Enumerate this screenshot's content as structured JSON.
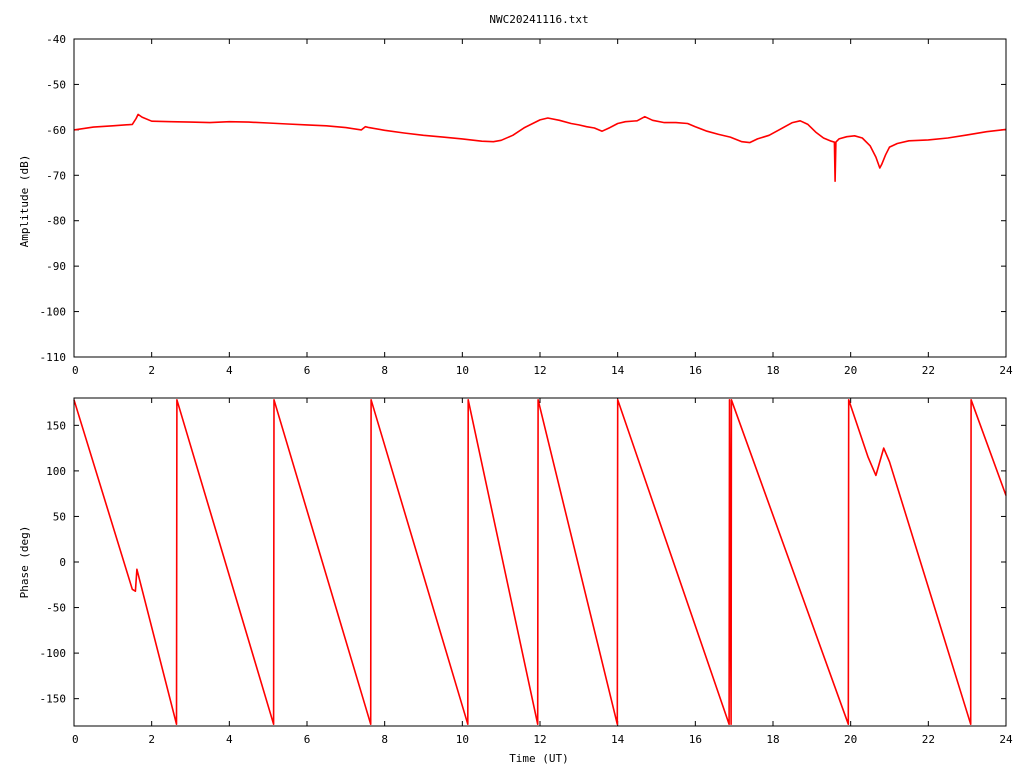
{
  "chart_data": [
    {
      "type": "line",
      "title": "NWC20241116.txt",
      "xlabel": "",
      "ylabel": "Amplitude (dB)",
      "xlim": [
        0,
        24
      ],
      "ylim": [
        -110,
        -40
      ],
      "x_ticks": [
        "0",
        "2",
        "4",
        "6",
        "8",
        "10",
        "12",
        "14",
        "16",
        "18",
        "20",
        "22",
        "24"
      ],
      "y_ticks": [
        "-40",
        "-50",
        "-60",
        "-70",
        "-80",
        "-90",
        "-100",
        "-110"
      ],
      "grid": false,
      "color": "#ff0000",
      "series": [
        {
          "x": [
            0,
            0.5,
            1.0,
            1.5,
            1.6,
            1.65,
            1.75,
            2.0,
            2.5,
            3.0,
            3.5,
            4.0,
            4.5,
            5.0,
            5.5,
            6.0,
            6.5,
            7.0,
            7.4,
            7.5,
            7.6,
            8.0,
            8.5,
            9.0,
            9.5,
            10.0,
            10.5,
            10.8,
            11.0,
            11.3,
            11.6,
            12.0,
            12.2,
            12.5,
            12.8,
            13.0,
            13.2,
            13.4,
            13.6,
            13.8,
            14.0,
            14.2,
            14.5,
            14.7,
            14.9,
            15.2,
            15.5,
            15.8,
            16.0,
            16.3,
            16.6,
            16.9,
            17.2,
            17.4,
            17.6,
            17.9,
            18.2,
            18.5,
            18.7,
            18.9,
            19.1,
            19.3,
            19.5,
            19.58,
            19.6,
            19.62,
            19.7,
            19.9,
            20.1,
            20.3,
            20.5,
            20.65,
            20.75,
            20.8,
            20.9,
            21.0,
            21.2,
            21.5,
            22.0,
            22.5,
            23.0,
            23.5,
            24.0
          ],
          "y": [
            -60,
            -59.4,
            -59.1,
            -58.8,
            -57.5,
            -56.6,
            -57.2,
            -58.1,
            -58.2,
            -58.3,
            -58.4,
            -58.2,
            -58.3,
            -58.5,
            -58.7,
            -58.9,
            -59.1,
            -59.5,
            -60.0,
            -59.3,
            -59.5,
            -60.1,
            -60.7,
            -61.2,
            -61.6,
            -62.0,
            -62.5,
            -62.6,
            -62.3,
            -61.2,
            -59.5,
            -57.8,
            -57.4,
            -57.9,
            -58.6,
            -58.9,
            -59.3,
            -59.6,
            -60.3,
            -59.5,
            -58.6,
            -58.2,
            -58.0,
            -57.1,
            -57.9,
            -58.4,
            -58.4,
            -58.6,
            -59.3,
            -60.3,
            -61.0,
            -61.6,
            -62.6,
            -62.8,
            -62.0,
            -61.2,
            -59.8,
            -58.4,
            -58.0,
            -58.8,
            -60.5,
            -61.8,
            -62.5,
            -62.7,
            -71.3,
            -62.7,
            -62.0,
            -61.5,
            -61.3,
            -61.8,
            -63.5,
            -66.0,
            -68.4,
            -67.6,
            -65.5,
            -63.8,
            -63.0,
            -62.4,
            -62.2,
            -61.8,
            -61.1,
            -60.4,
            -59.9
          ]
        }
      ]
    },
    {
      "type": "line",
      "title": "",
      "xlabel": "Time (UT)",
      "ylabel": "Phase (deg)",
      "xlim": [
        0,
        24
      ],
      "ylim": [
        -180,
        180
      ],
      "x_ticks": [
        "0",
        "2",
        "4",
        "6",
        "8",
        "10",
        "12",
        "14",
        "16",
        "18",
        "20",
        "22",
        "24"
      ],
      "y_ticks": [
        "150",
        "100",
        "50",
        "0",
        "-50",
        "-100",
        "-150"
      ],
      "grid": false,
      "color": "#ff0000",
      "series": [
        {
          "x": [
            0,
            1.5,
            1.58,
            1.62,
            2.64,
            2.65,
            5.14,
            5.15,
            7.64,
            7.65,
            10.14,
            10.15,
            11.94,
            11.95,
            13.99,
            14.0,
            16.87,
            16.88,
            16.92,
            16.93,
            19.94,
            19.95,
            20.45,
            20.65,
            20.85,
            21.0,
            23.09,
            23.1,
            24.0
          ],
          "y": [
            178,
            -30,
            -32,
            -8,
            -178,
            178,
            -178,
            178,
            -178,
            178,
            -178,
            178,
            -178,
            178,
            -178,
            178,
            -178,
            178,
            -178,
            178,
            -178,
            178,
            115,
            95,
            125,
            110,
            -178,
            178,
            73
          ]
        }
      ]
    }
  ]
}
